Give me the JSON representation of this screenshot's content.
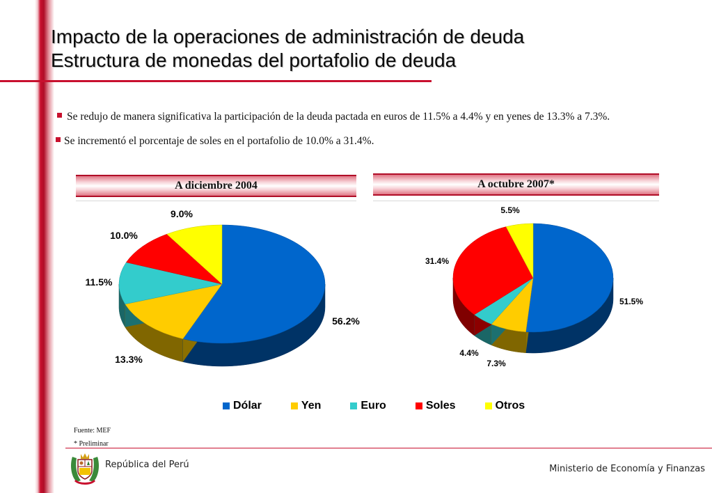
{
  "slide": {
    "title_line1": "Impacto de la operaciones de administración de deuda",
    "title_line2": "Estructura de monedas del portafolio de deuda",
    "bullets": [
      "Se redujo de manera significativa la participación de la deuda pactada en euros de 11.5% a 4.4% y en yenes de 13.3% a 7.3%.",
      "Se incrementó el porcentaje de soles en el portafolio  de 10.0% a 31.4%."
    ],
    "source": "Fuente:  MEF",
    "note": "* Preliminar",
    "footer_left": "República del Perú",
    "footer_right": "Ministerio de Economía y Finanzas",
    "emblem_icon": "peru-coat-of-arms-icon"
  },
  "colors": {
    "brand_red": "#c8102e",
    "Dólar": "#0066cc",
    "Yen": "#ffcc00",
    "Euro": "#33cccc",
    "Soles": "#ff0000",
    "Otros": "#ffff00"
  },
  "legend": [
    "Dólar",
    "Yen",
    "Euro",
    "Soles",
    "Otros"
  ],
  "chart_data": [
    {
      "type": "pie",
      "title": "A diciembre 2004",
      "categories": [
        "Dólar",
        "Yen",
        "Euro",
        "Soles",
        "Otros"
      ],
      "values": [
        56.2,
        13.3,
        11.5,
        10.0,
        9.0
      ],
      "labels": [
        "56.2%",
        "13.3%",
        "11.5%",
        "10.0%",
        "9.0%"
      ],
      "legend": "bottom"
    },
    {
      "type": "pie",
      "title": "A octubre 2007*",
      "categories": [
        "Dólar",
        "Yen",
        "Euro",
        "Soles",
        "Otros"
      ],
      "values": [
        51.5,
        7.3,
        4.4,
        31.4,
        5.5
      ],
      "labels": [
        "51.5%",
        "7.3%",
        "4.4%",
        "31.4%",
        "5.5%"
      ],
      "legend": "bottom"
    }
  ]
}
